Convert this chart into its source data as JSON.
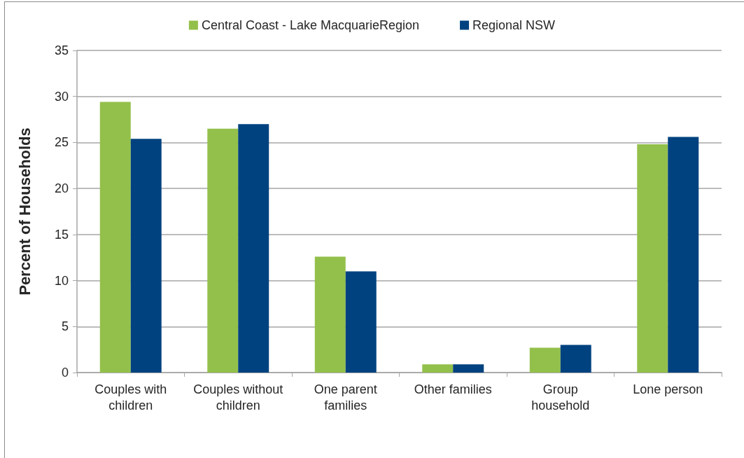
{
  "chart_data": {
    "type": "bar",
    "ylabel": "Percent of Households",
    "categories": [
      "Couples with\nchildren",
      "Couples without\nchildren",
      "One parent\nfamilies",
      "Other families",
      "Group\nhousehold",
      "Lone person"
    ],
    "series": [
      {
        "name": "Central Coast - Lake MacquarieRegion",
        "color": "#93c04b",
        "values": [
          29.4,
          26.5,
          12.6,
          0.9,
          2.7,
          24.8
        ]
      },
      {
        "name": "Regional NSW",
        "color": "#00427f",
        "values": [
          25.4,
          27.0,
          11.0,
          0.9,
          3.0,
          25.6
        ]
      }
    ],
    "ylim": [
      0,
      35
    ],
    "yticks": [
      0,
      5,
      10,
      15,
      20,
      25,
      30,
      35
    ],
    "grid": "y",
    "legend": "top"
  }
}
